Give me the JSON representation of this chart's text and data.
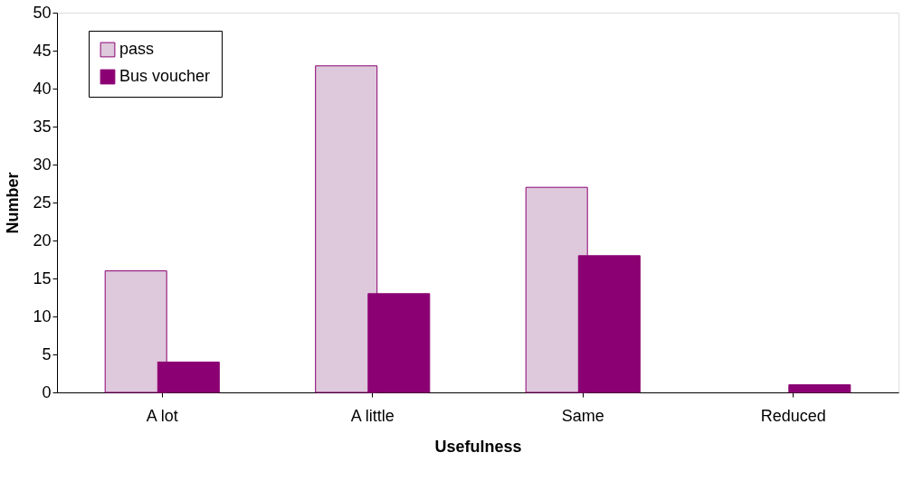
{
  "chart_data": {
    "type": "bar",
    "xlabel": "Usefulness",
    "ylabel": "Number",
    "categories": [
      "A lot",
      "A little",
      "Same",
      "Reduced"
    ],
    "series": [
      {
        "name": "pass",
        "color": "#dec8dc",
        "values": [
          16,
          43,
          27,
          null
        ]
      },
      {
        "name": "Bus voucher",
        "color": "#8b0072",
        "values": [
          4,
          13,
          18,
          1
        ]
      }
    ],
    "ylim": [
      0,
      50
    ],
    "yticks": [
      0,
      5,
      10,
      15,
      20,
      25,
      30,
      35,
      40,
      45,
      50
    ],
    "grid": false,
    "legend": "top left"
  }
}
